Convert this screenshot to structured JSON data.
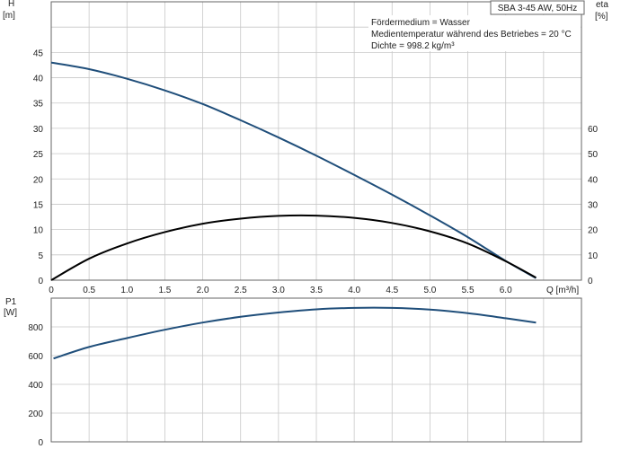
{
  "chart_data": [
    {
      "type": "line",
      "title_box": "SBA 3-45 AW, 50Hz",
      "notes": [
        "Fördermedium = Wasser",
        "Medientemperatur während des Betriebes = 20 °C",
        "Dichte = 998.2 kg/m³"
      ],
      "xlabel": "Q [m³/h]",
      "x_ticks": [
        0,
        0.5,
        1.0,
        1.5,
        2.0,
        2.5,
        3.0,
        3.5,
        4.0,
        4.5,
        5.0,
        5.5,
        6.0
      ],
      "x_tick_labels": [
        "0",
        "0.5",
        "1.0",
        "1.5",
        "2.0",
        "2.5",
        "3.0",
        "3.5",
        "4.0",
        "4.5",
        "5.0",
        "5.5",
        "6.0"
      ],
      "xlim": [
        0,
        7
      ],
      "ylabel_left": [
        "H",
        "[m]"
      ],
      "y_left_ticks": [
        0,
        5,
        10,
        15,
        20,
        25,
        30,
        35,
        40,
        45
      ],
      "ylim_left": [
        0,
        55
      ],
      "ylabel_right": [
        "eta",
        "[%]"
      ],
      "y_right_ticks": [
        0,
        10,
        20,
        30,
        40,
        50,
        60
      ],
      "ylim_right": [
        0,
        110
      ],
      "grid": true,
      "series": [
        {
          "axis": "left",
          "color": "#1f4e7a",
          "points": [
            [
              0,
              43.0
            ],
            [
              0.5,
              41.7
            ],
            [
              1.0,
              39.8
            ],
            [
              1.5,
              37.5
            ],
            [
              2.0,
              34.8
            ],
            [
              2.5,
              31.6
            ],
            [
              3.0,
              28.2
            ],
            [
              3.5,
              24.6
            ],
            [
              4.0,
              20.8
            ],
            [
              4.5,
              16.9
            ],
            [
              5.0,
              12.8
            ],
            [
              5.5,
              8.5
            ],
            [
              6.0,
              3.8
            ],
            [
              6.4,
              0.4
            ]
          ]
        },
        {
          "axis": "right",
          "color": "#000000",
          "points": [
            [
              0,
              0
            ],
            [
              0.5,
              8.5
            ],
            [
              1.0,
              14.5
            ],
            [
              1.5,
              19.0
            ],
            [
              2.0,
              22.3
            ],
            [
              2.5,
              24.3
            ],
            [
              3.0,
              25.4
            ],
            [
              3.5,
              25.5
            ],
            [
              4.0,
              24.6
            ],
            [
              4.5,
              22.6
            ],
            [
              5.0,
              19.3
            ],
            [
              5.5,
              14.5
            ],
            [
              6.0,
              7.5
            ],
            [
              6.4,
              1.0
            ]
          ]
        }
      ]
    },
    {
      "type": "line",
      "ylabel_left": [
        "P1",
        "[W]"
      ],
      "y_left_ticks": [
        0,
        200,
        400,
        600,
        800
      ],
      "ylim_left": [
        0,
        1000
      ],
      "xlim": [
        0,
        7
      ],
      "grid": true,
      "series": [
        {
          "axis": "left",
          "color": "#1f4e7a",
          "points": [
            [
              0.03,
              580
            ],
            [
              0.5,
              660
            ],
            [
              1.0,
              722
            ],
            [
              1.5,
              780
            ],
            [
              2.0,
              830
            ],
            [
              2.5,
              870
            ],
            [
              3.0,
              900
            ],
            [
              3.5,
              922
            ],
            [
              4.0,
              932
            ],
            [
              4.5,
              932
            ],
            [
              5.0,
              920
            ],
            [
              5.5,
              895
            ],
            [
              6.0,
              860
            ],
            [
              6.4,
              830
            ]
          ]
        }
      ]
    }
  ]
}
